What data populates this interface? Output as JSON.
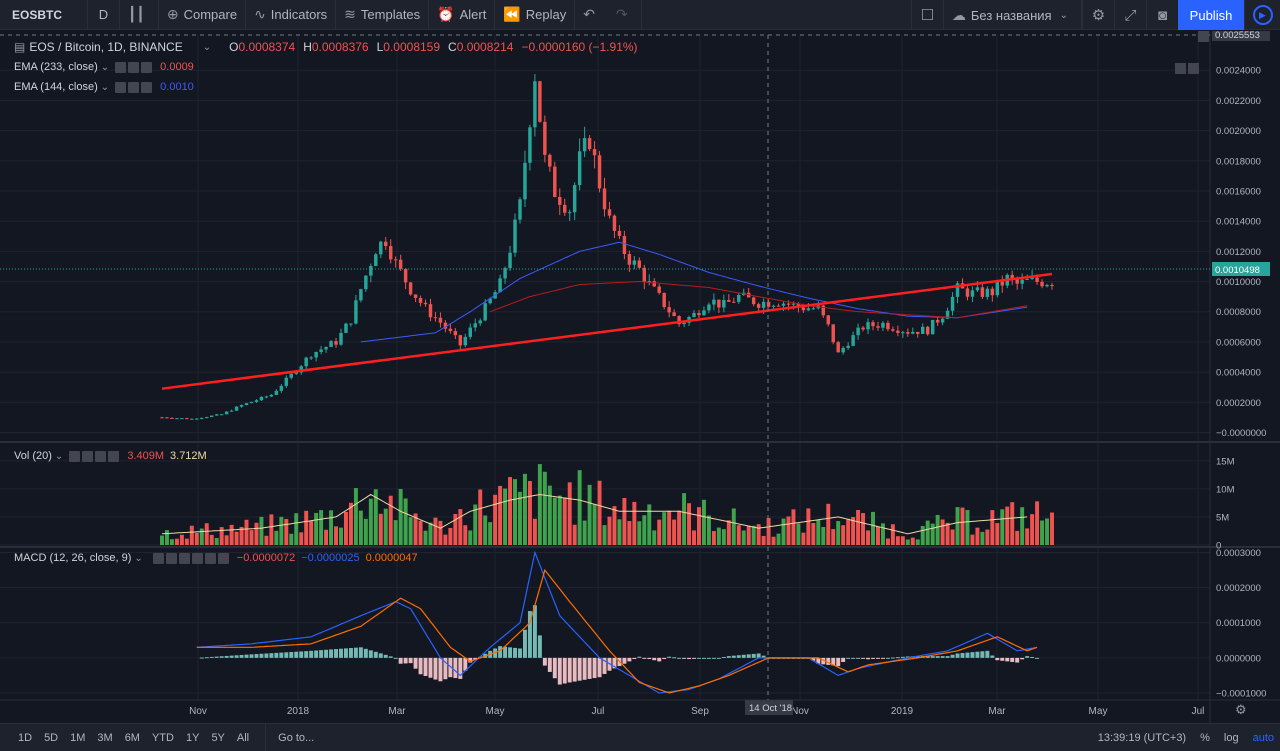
{
  "toolbar": {
    "symbol": "EOSBTC",
    "interval": "D",
    "compare": "Compare",
    "indicators": "Indicators",
    "templates": "Templates",
    "alert": "Alert",
    "replay": "Replay",
    "layout_name": "Без названия",
    "publish": "Publish"
  },
  "legend": {
    "title": "EOS / Bitcoin, 1D, BINANCE",
    "o_label": "O",
    "o": "0.0008374",
    "h_label": "H",
    "h": "0.0008376",
    "l_label": "L",
    "l": "0.0008159",
    "c_label": "C",
    "c": "0.0008214",
    "change": "−0.0000160 (−1.91%)",
    "ema1_name": "EMA (233, close)",
    "ema1_value": "0.0009",
    "ema2_name": "EMA (144, close)",
    "ema2_value": "0.0010",
    "vol_name": "Vol (20)",
    "vol_value1": "3.409M",
    "vol_value2": "3.712M",
    "macd_name": "MACD (12, 26, close, 9)",
    "macd_v1": "−0.0000072",
    "macd_v2": "−0.0000025",
    "macd_v3": "0.0000047"
  },
  "bottom": {
    "ranges": [
      "1D",
      "5D",
      "1M",
      "3M",
      "6M",
      "YTD",
      "1Y",
      "5Y",
      "All"
    ],
    "goto": "Go to...",
    "time": "13:39:19 (UTC+3)",
    "percent": "%",
    "log": "log",
    "auto": "auto"
  },
  "colors": {
    "background": "#131722",
    "up": "#26a69a",
    "down": "#ef5350",
    "trendline": "#ff1f1f",
    "ema233": "#b71c1c",
    "ema144": "#3d5afe",
    "macd_line": "#2962ff",
    "signal_line": "#ff6d00",
    "vol_ma": "#f0d9a3"
  },
  "chart_data": [
    {
      "type": "candlestick",
      "title": "EOS / Bitcoin, 1D, BINANCE",
      "ylim": [
        -5e-05,
        0.0026
      ],
      "y_ticks": [
        "0.0024000",
        "0.0022000",
        "0.0020000",
        "0.0018000",
        "0.0016000",
        "0.0014000",
        "0.0012000",
        "0.0010000",
        "0.0008000",
        "0.0006000",
        "0.0004000",
        "0.0002000",
        "−0.0000000"
      ],
      "top_price_label": "0.0025553",
      "last_price_label": "0.0010498",
      "x_labels": [
        "Nov",
        "2018",
        "Mar",
        "May",
        "Jul",
        "Sep",
        "Nov",
        "2019",
        "Mar",
        "May",
        "Jul"
      ],
      "crosshair_label": "14 Oct '18",
      "price_anchors": [
        [
          0,
          0.0001
        ],
        [
          6,
          9e-05
        ],
        [
          12,
          0.00012
        ],
        [
          16,
          0.00018
        ],
        [
          22,
          0.00025
        ],
        [
          26,
          0.00038
        ],
        [
          30,
          0.00052
        ],
        [
          35,
          0.0006
        ],
        [
          38,
          0.00075
        ],
        [
          40,
          0.00095
        ],
        [
          43,
          0.00122
        ],
        [
          45,
          0.00128
        ],
        [
          47,
          0.00112
        ],
        [
          50,
          0.00095
        ],
        [
          53,
          0.00082
        ],
        [
          56,
          0.00073
        ],
        [
          60,
          0.00058
        ],
        [
          62,
          0.00068
        ],
        [
          65,
          0.00082
        ],
        [
          68,
          0.00098
        ],
        [
          70,
          0.00122
        ],
        [
          72,
          0.0015
        ],
        [
          74,
          0.0021
        ],
        [
          75,
          0.00238
        ],
        [
          77,
          0.0018
        ],
        [
          79,
          0.0016
        ],
        [
          82,
          0.00148
        ],
        [
          84,
          0.0018
        ],
        [
          86,
          0.00195
        ],
        [
          88,
          0.00165
        ],
        [
          90,
          0.0014
        ],
        [
          92,
          0.00125
        ],
        [
          94,
          0.00115
        ],
        [
          96,
          0.00108
        ],
        [
          98,
          0.00098
        ],
        [
          101,
          0.00085
        ],
        [
          104,
          0.00072
        ],
        [
          107,
          0.00078
        ],
        [
          110,
          0.00088
        ],
        [
          113,
          0.00084
        ],
        [
          116,
          0.0009
        ],
        [
          120,
          0.00086
        ],
        [
          124,
          0.00087
        ],
        [
          128,
          0.00083
        ],
        [
          132,
          0.00082
        ],
        [
          134,
          0.0007
        ],
        [
          136,
          0.00052
        ],
        [
          138,
          0.0006
        ],
        [
          141,
          0.0007
        ],
        [
          145,
          0.00072
        ],
        [
          150,
          0.00067
        ],
        [
          154,
          0.00068
        ],
        [
          157,
          0.00078
        ],
        [
          160,
          0.00095
        ],
        [
          163,
          0.00092
        ],
        [
          167,
          0.00093
        ],
        [
          170,
          0.00102
        ],
        [
          172,
          0.00098
        ],
        [
          174,
          0.001
        ]
      ],
      "trendline": [
        [
          0,
          0.00029
        ],
        [
          179,
          0.00105
        ]
      ],
      "ema233": [
        [
          66,
          0.0008
        ],
        [
          74,
          0.0009
        ],
        [
          84,
          0.00098
        ],
        [
          96,
          0.001
        ],
        [
          110,
          0.00096
        ],
        [
          120,
          0.0009
        ],
        [
          130,
          0.00084
        ],
        [
          140,
          0.0008
        ],
        [
          150,
          0.00078
        ],
        [
          160,
          0.00076
        ],
        [
          174,
          0.00084
        ]
      ],
      "ema144": [
        [
          40,
          0.0006
        ],
        [
          55,
          0.00066
        ],
        [
          62,
          0.0008
        ],
        [
          72,
          0.00102
        ],
        [
          84,
          0.0012
        ],
        [
          92,
          0.00126
        ],
        [
          100,
          0.00118
        ],
        [
          110,
          0.00106
        ],
        [
          120,
          0.00097
        ],
        [
          130,
          0.00089
        ],
        [
          140,
          0.00082
        ],
        [
          150,
          0.00077
        ],
        [
          160,
          0.00076
        ],
        [
          174,
          0.00083
        ]
      ]
    },
    {
      "type": "bar",
      "title": "Vol (20)",
      "ylim": [
        0,
        18
      ],
      "y_ticks": [
        "15M",
        "10M",
        "5M",
        "0"
      ],
      "profile": [
        [
          0,
          2
        ],
        [
          20,
          3
        ],
        [
          35,
          5
        ],
        [
          42,
          9
        ],
        [
          48,
          6
        ],
        [
          56,
          3
        ],
        [
          62,
          6
        ],
        [
          70,
          8
        ],
        [
          76,
          9
        ],
        [
          84,
          8
        ],
        [
          92,
          6
        ],
        [
          104,
          6
        ],
        [
          120,
          3
        ],
        [
          136,
          5
        ],
        [
          150,
          2
        ],
        [
          160,
          4
        ],
        [
          174,
          5
        ]
      ]
    },
    {
      "type": "line",
      "title": "MACD (12, 26, close, 9)",
      "ylim": [
        -0.00012,
        0.00031
      ],
      "y_ticks": [
        "0.0003000",
        "0.0002000",
        "0.0001000",
        "0.0000000",
        "−0.0001000"
      ],
      "macd": [
        [
          7,
          3e-05
        ],
        [
          18,
          4e-05
        ],
        [
          30,
          6e-05
        ],
        [
          40,
          0.00012
        ],
        [
          47,
          0.00016
        ],
        [
          50,
          0.00014
        ],
        [
          56,
          0.0
        ],
        [
          60,
          -5e-05
        ],
        [
          66,
          3e-05
        ],
        [
          72,
          0.0001
        ],
        [
          75,
          0.0003
        ],
        [
          80,
          0.00012
        ],
        [
          88,
          0.0
        ],
        [
          94,
          -5e-05
        ],
        [
          100,
          -0.0001
        ],
        [
          106,
          -9e-05
        ],
        [
          112,
          -6e-05
        ],
        [
          120,
          0.0
        ],
        [
          130,
          0.0
        ],
        [
          136,
          -5e-05
        ],
        [
          140,
          -3e-05
        ],
        [
          150,
          0.0
        ],
        [
          158,
          2e-05
        ],
        [
          166,
          7e-05
        ],
        [
          172,
          2e-05
        ],
        [
          176,
          3e-05
        ]
      ],
      "signal": [
        [
          7,
          3e-05
        ],
        [
          18,
          3e-05
        ],
        [
          30,
          4e-05
        ],
        [
          40,
          9e-05
        ],
        [
          48,
          0.00017
        ],
        [
          52,
          0.00014
        ],
        [
          58,
          3e-05
        ],
        [
          62,
          -1e-05
        ],
        [
          68,
          2e-05
        ],
        [
          74,
          0.0001
        ],
        [
          77,
          0.00025
        ],
        [
          82,
          0.00016
        ],
        [
          90,
          2e-05
        ],
        [
          96,
          -7e-05
        ],
        [
          102,
          -0.0001
        ],
        [
          108,
          -8e-05
        ],
        [
          114,
          -5e-05
        ],
        [
          122,
          0.0
        ],
        [
          132,
          0.0
        ],
        [
          138,
          -4e-05
        ],
        [
          142,
          -2e-05
        ],
        [
          152,
          0.0
        ],
        [
          160,
          2e-05
        ],
        [
          168,
          6e-05
        ],
        [
          174,
          2e-05
        ],
        [
          176,
          3e-05
        ]
      ]
    }
  ]
}
